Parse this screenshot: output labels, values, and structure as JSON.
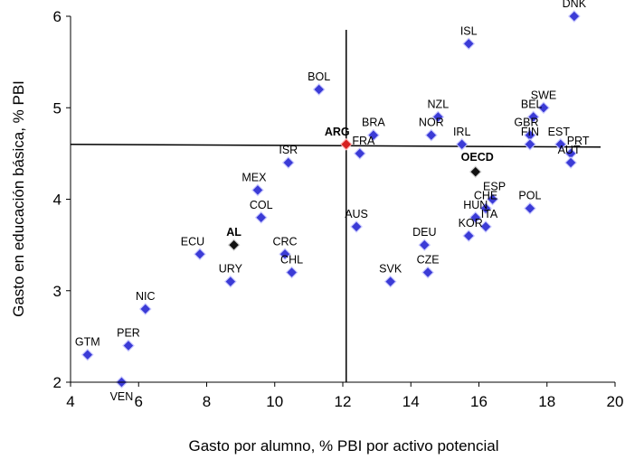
{
  "chart_data": {
    "type": "scatter",
    "xlabel": "Gasto por alumno, % PBI por activo potencial",
    "ylabel": "Gasto en educación básica, % PBI",
    "xlim": [
      4,
      20
    ],
    "ylim": [
      2,
      6
    ],
    "xticks": [
      "4",
      "6",
      "8",
      "10",
      "12",
      "14",
      "16",
      "18",
      "20"
    ],
    "yticks": [
      "2",
      "3",
      "4",
      "5",
      "6"
    ],
    "grid": false,
    "colors": {
      "default": "#3b3bd6",
      "highlight": "#d62020",
      "aggregate": "#111111"
    },
    "reference_lines": {
      "vertical_x": 12.1,
      "horizontal_y": 4.6
    },
    "points": [
      {
        "label": "DNK",
        "x": 18.8,
        "y": 6.0
      },
      {
        "label": "ISL",
        "x": 15.7,
        "y": 5.7
      },
      {
        "label": "BOL",
        "x": 11.3,
        "y": 5.2
      },
      {
        "label": "SWE",
        "x": 17.9,
        "y": 5.0
      },
      {
        "label": "NZL",
        "x": 14.8,
        "y": 4.9
      },
      {
        "label": "BEL",
        "x": 17.6,
        "y": 4.9
      },
      {
        "label": "BRA",
        "x": 12.9,
        "y": 4.7
      },
      {
        "label": "NOR",
        "x": 14.6,
        "y": 4.7
      },
      {
        "label": "GBR",
        "x": 17.5,
        "y": 4.7
      },
      {
        "label": "ARG",
        "x": 12.1,
        "y": 4.6,
        "style": "highlight"
      },
      {
        "label": "IRL",
        "x": 15.5,
        "y": 4.6
      },
      {
        "label": "FIN",
        "x": 17.5,
        "y": 4.6
      },
      {
        "label": "EST",
        "x": 18.4,
        "y": 4.6
      },
      {
        "label": "PRT",
        "x": 18.7,
        "y": 4.5
      },
      {
        "label": "FRA",
        "x": 12.5,
        "y": 4.5
      },
      {
        "label": "AUT",
        "x": 18.7,
        "y": 4.4
      },
      {
        "label": "ISR",
        "x": 10.4,
        "y": 4.4
      },
      {
        "label": "OECD",
        "x": 15.9,
        "y": 4.3,
        "style": "aggregate"
      },
      {
        "label": "MEX",
        "x": 9.5,
        "y": 4.1
      },
      {
        "label": "ESP",
        "x": 16.4,
        "y": 4.0
      },
      {
        "label": "CHE",
        "x": 16.2,
        "y": 3.9
      },
      {
        "label": "POL",
        "x": 17.5,
        "y": 3.9
      },
      {
        "label": "HUN",
        "x": 15.9,
        "y": 3.8
      },
      {
        "label": "COL",
        "x": 9.6,
        "y": 3.8
      },
      {
        "label": "ITA",
        "x": 16.2,
        "y": 3.7
      },
      {
        "label": "AUS",
        "x": 12.4,
        "y": 3.7
      },
      {
        "label": "KOR",
        "x": 15.7,
        "y": 3.6
      },
      {
        "label": "AL",
        "x": 8.8,
        "y": 3.5,
        "style": "aggregate"
      },
      {
        "label": "DEU",
        "x": 14.4,
        "y": 3.5
      },
      {
        "label": "ECU",
        "x": 7.8,
        "y": 3.4
      },
      {
        "label": "CRC",
        "x": 10.3,
        "y": 3.4
      },
      {
        "label": "CHL",
        "x": 10.5,
        "y": 3.2
      },
      {
        "label": "CZE",
        "x": 14.5,
        "y": 3.2
      },
      {
        "label": "URY",
        "x": 8.7,
        "y": 3.1
      },
      {
        "label": "SVK",
        "x": 13.4,
        "y": 3.1
      },
      {
        "label": "NIC",
        "x": 6.2,
        "y": 2.8
      },
      {
        "label": "PER",
        "x": 5.7,
        "y": 2.4
      },
      {
        "label": "GTM",
        "x": 4.5,
        "y": 2.3
      },
      {
        "label": "VEN",
        "x": 5.5,
        "y": 2.0
      }
    ]
  }
}
